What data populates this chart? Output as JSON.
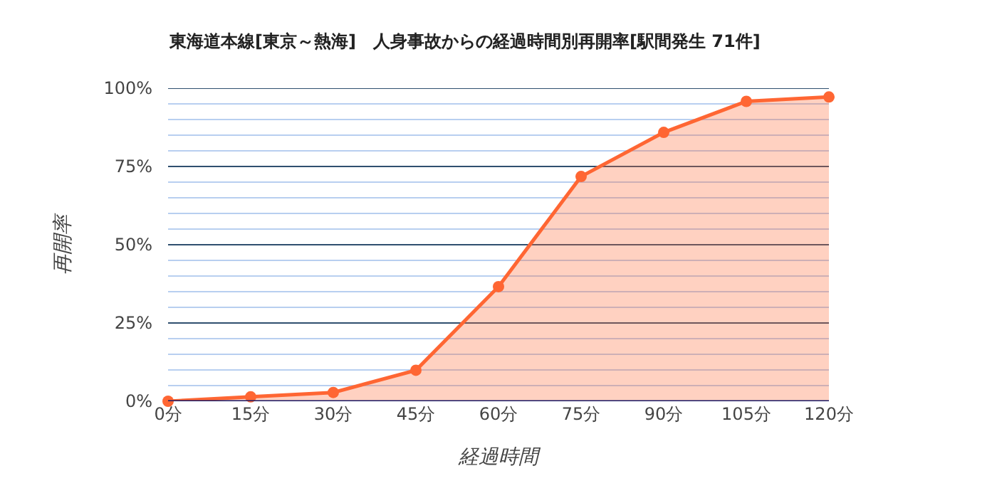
{
  "chart_data": {
    "type": "area",
    "title": "東海道本線[東京～熱海]　人身事故からの経過時間別再開率[駅間発生 71件]",
    "xlabel": "経過時間",
    "ylabel": "再開率",
    "categories": [
      "0分",
      "15分",
      "30分",
      "45分",
      "60分",
      "75分",
      "90分",
      "105分",
      "120分"
    ],
    "series": [
      {
        "color": "#ff6633",
        "values": [
          0,
          1.4,
          2.8,
          9.9,
          36.6,
          71.8,
          85.9,
          95.8,
          97.2
        ]
      }
    ],
    "ylim": [
      0,
      100
    ],
    "yticks": [
      {
        "value": 0,
        "label": "0%"
      },
      {
        "value": 5,
        "label": null
      },
      {
        "value": 10,
        "label": null
      },
      {
        "value": 15,
        "label": null
      },
      {
        "value": 20,
        "label": null
      },
      {
        "value": 25,
        "label": "25%"
      },
      {
        "value": 30,
        "label": null
      },
      {
        "value": 35,
        "label": null
      },
      {
        "value": 40,
        "label": null
      },
      {
        "value": 45,
        "label": null
      },
      {
        "value": 50,
        "label": "50%"
      },
      {
        "value": 55,
        "label": null
      },
      {
        "value": 60,
        "label": null
      },
      {
        "value": 65,
        "label": null
      },
      {
        "value": 70,
        "label": null
      },
      {
        "value": 75,
        "label": "75%"
      },
      {
        "value": 80,
        "label": null
      },
      {
        "value": 85,
        "label": null
      },
      {
        "value": 90,
        "label": null
      },
      {
        "value": 95,
        "label": null
      },
      {
        "value": 100,
        "label": "100%"
      }
    ],
    "grid": "y",
    "marker": "circle",
    "line_style": "solid",
    "legend": false
  }
}
